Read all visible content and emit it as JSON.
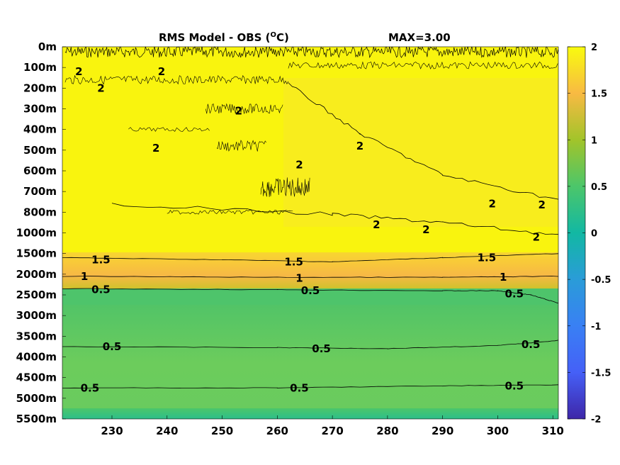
{
  "chart_data": {
    "type": "heatmap",
    "title": "RMS Model - OBS (",
    "title_unit_sup": "O",
    "title_unit_end": "C)",
    "max_label": "MAX=3.00",
    "x_ticks": [
      230,
      240,
      250,
      260,
      270,
      280,
      290,
      300,
      310
    ],
    "xlim": [
      221,
      311
    ],
    "y_ticks": [
      "0m",
      "100m",
      "200m",
      "300m",
      "400m",
      "500m",
      "600m",
      "700m",
      "800m",
      "1000m",
      "1500m",
      "2000m",
      "2500m",
      "3000m",
      "3500m",
      "4000m",
      "4500m",
      "5000m",
      "5500m"
    ],
    "colorbar": {
      "range": [
        -2,
        2
      ],
      "ticks": [
        "2",
        "1.5",
        "1",
        "0.5",
        "0",
        "-0.5",
        "-1",
        "-1.5",
        "-2"
      ]
    },
    "bands": [
      {
        "from": 0,
        "to": 10.1,
        "value": 2.0
      },
      {
        "from": 10.1,
        "to": 11.1,
        "value": 1.6
      },
      {
        "from": 11.1,
        "to": 11.7,
        "value": 1.2
      },
      {
        "from": 11.7,
        "to": 12.4,
        "value": 0.55
      },
      {
        "from": 12.4,
        "to": 17.6,
        "value": 0.65
      },
      {
        "from": 17.6,
        "to": 18,
        "value": 0.45
      }
    ],
    "contours": [
      {
        "level": "2",
        "points": [
          [
            230,
            7.6
          ],
          [
            270,
            8.1
          ],
          [
            290,
            8.5
          ],
          [
            311,
            9.1
          ]
        ]
      },
      {
        "level": "2",
        "points": [
          [
            262,
            1.8
          ],
          [
            275,
            4.2
          ],
          [
            290,
            6.2
          ],
          [
            311,
            7.4
          ]
        ]
      },
      {
        "level": "1.5",
        "points": [
          [
            221,
            10.2
          ],
          [
            250,
            10.3
          ],
          [
            270,
            10.4
          ],
          [
            290,
            10.2
          ],
          [
            311,
            10.0
          ]
        ]
      },
      {
        "level": "1",
        "points": [
          [
            221,
            11.1
          ],
          [
            260,
            11.15
          ],
          [
            290,
            11.15
          ],
          [
            311,
            11.1
          ]
        ]
      },
      {
        "level": "0.5",
        "points": [
          [
            221,
            11.7
          ],
          [
            260,
            11.75
          ],
          [
            290,
            11.8
          ],
          [
            300,
            11.8
          ],
          [
            306,
            12.0
          ],
          [
            311,
            12.4
          ]
        ]
      },
      {
        "level": "0.5",
        "points": [
          [
            221,
            14.5
          ],
          [
            260,
            14.55
          ],
          [
            280,
            14.6
          ],
          [
            300,
            14.45
          ],
          [
            311,
            14.2
          ]
        ]
      },
      {
        "level": "0.5",
        "points": [
          [
            221,
            16.5
          ],
          [
            260,
            16.5
          ],
          [
            290,
            16.4
          ],
          [
            311,
            16.35
          ]
        ]
      }
    ],
    "contour_labels": [
      {
        "text": "1.5",
        "x": 228,
        "y": 10.3
      },
      {
        "text": "1.5",
        "x": 263,
        "y": 10.4
      },
      {
        "text": "1.5",
        "x": 298,
        "y": 10.2
      },
      {
        "text": "1",
        "x": 225,
        "y": 11.1
      },
      {
        "text": "1",
        "x": 264,
        "y": 11.2
      },
      {
        "text": "1",
        "x": 301,
        "y": 11.15
      },
      {
        "text": "0.5",
        "x": 228,
        "y": 11.75
      },
      {
        "text": "0.5",
        "x": 266,
        "y": 11.8
      },
      {
        "text": "0.5",
        "x": 303,
        "y": 11.95
      },
      {
        "text": "0.5",
        "x": 230,
        "y": 14.5
      },
      {
        "text": "0.5",
        "x": 268,
        "y": 14.6
      },
      {
        "text": "0.5",
        "x": 306,
        "y": 14.4
      },
      {
        "text": "0.5",
        "x": 226,
        "y": 16.5
      },
      {
        "text": "0.5",
        "x": 264,
        "y": 16.5
      },
      {
        "text": "0.5",
        "x": 303,
        "y": 16.4
      },
      {
        "text": "2",
        "x": 299,
        "y": 7.6
      },
      {
        "text": "2",
        "x": 308,
        "y": 7.65
      },
      {
        "text": "2",
        "x": 278,
        "y": 8.6
      },
      {
        "text": "2",
        "x": 287,
        "y": 8.85
      },
      {
        "text": "2",
        "x": 307,
        "y": 9.2
      },
      {
        "text": "2",
        "x": 264,
        "y": 5.7
      },
      {
        "text": "2",
        "x": 275,
        "y": 4.8
      },
      {
        "text": "2",
        "x": 239,
        "y": 1.2
      },
      {
        "text": "2",
        "x": 224,
        "y": 1.2
      },
      {
        "text": "2",
        "x": 228,
        "y": 2.0
      },
      {
        "text": "2",
        "x": 253,
        "y": 3.1
      },
      {
        "text": "2",
        "x": 238,
        "y": 4.9
      }
    ]
  }
}
